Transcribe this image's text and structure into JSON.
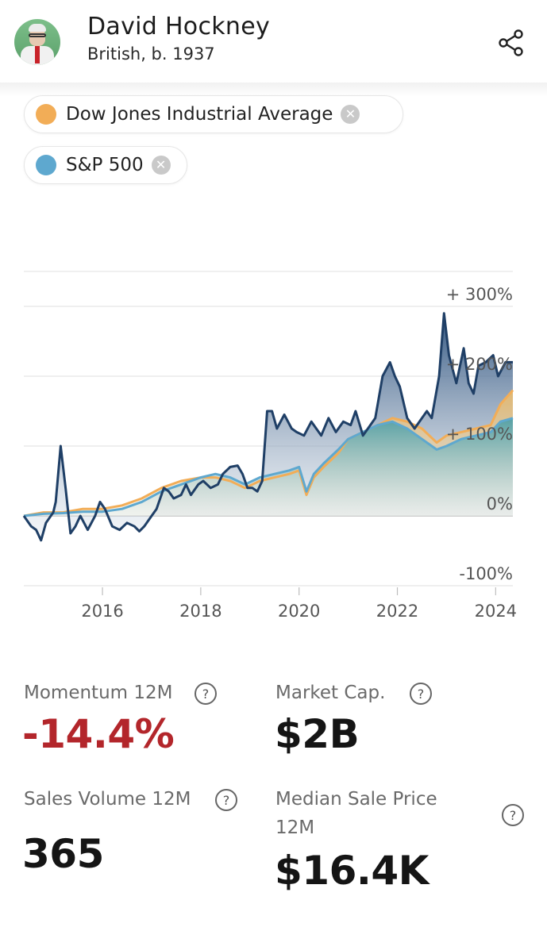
{
  "header": {
    "artist_name": "David Hockney",
    "artist_subtitle": "British, b. 1937",
    "share_icon": "share-icon"
  },
  "chips": [
    {
      "label": "Dow Jones Industrial Average",
      "color": "#f2ad57",
      "remove_icon": "close-icon"
    },
    {
      "label": "S&P 500",
      "color": "#5ea8cf",
      "remove_icon": "close-icon"
    }
  ],
  "chart_data": {
    "type": "area",
    "title": "",
    "xlabel": "",
    "ylabel": "",
    "xlim": [
      2014.4,
      2024.35
    ],
    "ylim": [
      -100,
      350
    ],
    "y_ticks": [
      {
        "value": 300,
        "label": "+ 300%"
      },
      {
        "value": 200,
        "label": "+ 200%"
      },
      {
        "value": 100,
        "label": "+ 100%"
      },
      {
        "value": 0,
        "label": "0%"
      },
      {
        "value": -100,
        "label": "-100%"
      }
    ],
    "x_ticks": [
      {
        "value": 2016,
        "label": "2016"
      },
      {
        "value": 2018,
        "label": "2018"
      },
      {
        "value": 2020,
        "label": "2020"
      },
      {
        "value": 2022,
        "label": "2022"
      },
      {
        "value": 2024,
        "label": "2024"
      }
    ],
    "series": [
      {
        "name": "David Hockney",
        "color": "#1f3f66",
        "x": [
          2014.4,
          2014.55,
          2014.65,
          2014.75,
          2014.85,
          2015.0,
          2015.05,
          2015.15,
          2015.25,
          2015.35,
          2015.45,
          2015.55,
          2015.7,
          2015.85,
          2015.95,
          2016.05,
          2016.2,
          2016.35,
          2016.5,
          2016.65,
          2016.75,
          2016.85,
          2016.95,
          2017.1,
          2017.25,
          2017.35,
          2017.45,
          2017.6,
          2017.7,
          2017.8,
          2017.95,
          2018.05,
          2018.2,
          2018.35,
          2018.45,
          2018.6,
          2018.75,
          2018.85,
          2018.95,
          2019.05,
          2019.15,
          2019.25,
          2019.35,
          2019.45,
          2019.55,
          2019.7,
          2019.85,
          2019.95,
          2020.1,
          2020.25,
          2020.35,
          2020.45,
          2020.6,
          2020.75,
          2020.9,
          2021.05,
          2021.15,
          2021.3,
          2021.45,
          2021.55,
          2021.7,
          2021.85,
          2021.95,
          2022.05,
          2022.2,
          2022.35,
          2022.5,
          2022.6,
          2022.7,
          2022.85,
          2022.95,
          2023.05,
          2023.2,
          2023.35,
          2023.45,
          2023.55,
          2023.65,
          2023.8,
          2023.95,
          2024.05,
          2024.2,
          2024.35
        ],
        "values": [
          0,
          -15,
          -20,
          -35,
          -10,
          5,
          20,
          100,
          40,
          -25,
          -15,
          0,
          -20,
          0,
          20,
          10,
          -15,
          -20,
          -10,
          -15,
          -22,
          -15,
          -5,
          10,
          40,
          35,
          25,
          30,
          45,
          30,
          45,
          50,
          40,
          45,
          60,
          70,
          72,
          60,
          40,
          40,
          35,
          50,
          150,
          150,
          125,
          145,
          125,
          120,
          115,
          135,
          125,
          115,
          140,
          120,
          135,
          130,
          150,
          115,
          130,
          140,
          200,
          220,
          200,
          185,
          140,
          125,
          140,
          150,
          140,
          200,
          290,
          230,
          190,
          240,
          190,
          175,
          215,
          220,
          230,
          200,
          220,
          220
        ]
      },
      {
        "name": "Dow Jones Industrial Average",
        "color": "#f2ad57",
        "x": [
          2014.4,
          2014.8,
          2015.2,
          2015.6,
          2016.0,
          2016.4,
          2016.8,
          2017.2,
          2017.6,
          2018.0,
          2018.3,
          2018.6,
          2018.9,
          2019.2,
          2019.5,
          2019.8,
          2020.0,
          2020.15,
          2020.3,
          2020.5,
          2020.8,
          2021.0,
          2021.3,
          2021.6,
          2021.9,
          2022.2,
          2022.5,
          2022.8,
          2023.0,
          2023.3,
          2023.6,
          2023.9,
          2024.1,
          2024.35
        ],
        "values": [
          0,
          5,
          5,
          10,
          10,
          15,
          25,
          40,
          50,
          55,
          55,
          50,
          40,
          50,
          55,
          60,
          65,
          30,
          55,
          70,
          90,
          110,
          120,
          130,
          140,
          135,
          125,
          105,
          115,
          120,
          125,
          130,
          160,
          180
        ]
      },
      {
        "name": "S&P 500",
        "color": "#5ea8cf",
        "x": [
          2014.4,
          2014.8,
          2015.2,
          2015.6,
          2016.0,
          2016.4,
          2016.8,
          2017.2,
          2017.6,
          2018.0,
          2018.3,
          2018.6,
          2018.9,
          2019.2,
          2019.5,
          2019.8,
          2020.0,
          2020.15,
          2020.3,
          2020.5,
          2020.8,
          2021.0,
          2021.3,
          2021.6,
          2021.9,
          2022.2,
          2022.5,
          2022.8,
          2023.0,
          2023.3,
          2023.6,
          2023.9,
          2024.1,
          2024.35
        ],
        "values": [
          0,
          3,
          4,
          6,
          6,
          10,
          20,
          35,
          45,
          55,
          60,
          55,
          45,
          55,
          60,
          65,
          70,
          35,
          60,
          75,
          95,
          110,
          120,
          130,
          135,
          125,
          110,
          95,
          100,
          110,
          115,
          120,
          135,
          140
        ]
      }
    ]
  },
  "metrics": {
    "momentum_label": "Momentum 12M",
    "momentum_value": "-14.4%",
    "market_cap_label": "Market Cap.",
    "market_cap_value": "$2B",
    "sales_volume_label": "Sales Volume 12M",
    "sales_volume_value": "365",
    "median_price_label_1": "Median Sale Price",
    "median_price_label_2": "12M",
    "median_price_value": "$16.4K",
    "help_icon": "question-icon"
  }
}
